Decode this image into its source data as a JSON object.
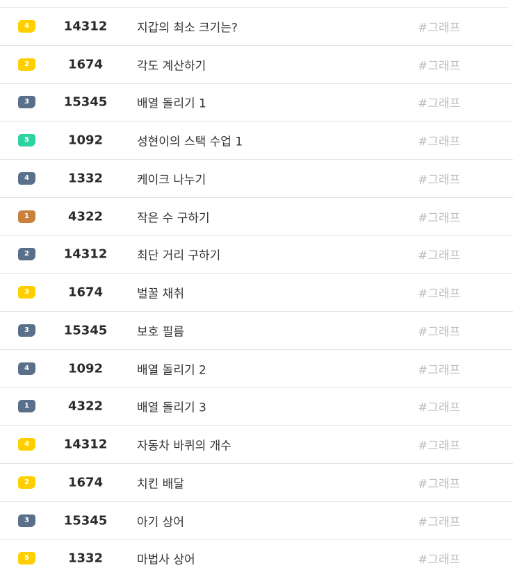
{
  "colors": {
    "gold": "#ffcf00",
    "silver": "#5a6f8a",
    "ruby": "#2ed3a2",
    "bronze": "#c9823e",
    "divider": "#e3e3e3",
    "tag_text": "#bdbdbd"
  },
  "problems": [
    {
      "level": "4",
      "tier": "gold",
      "id": "14312",
      "title": "지갑의 최소 크기는?",
      "tag": "#그래프"
    },
    {
      "level": "2",
      "tier": "gold",
      "id": "1674",
      "title": "각도 계산하기",
      "tag": "#그래프"
    },
    {
      "level": "3",
      "tier": "silver",
      "id": "15345",
      "title": "배열 돌리기 1",
      "tag": "#그래프"
    },
    {
      "level": "5",
      "tier": "ruby",
      "id": "1092",
      "title": "성현이의 스택 수업 1",
      "tag": "#그래프"
    },
    {
      "level": "4",
      "tier": "silver",
      "id": "1332",
      "title": "케이크 나누기",
      "tag": "#그래프"
    },
    {
      "level": "1",
      "tier": "bronze",
      "id": "4322",
      "title": "작은 수 구하기",
      "tag": "#그래프"
    },
    {
      "level": "2",
      "tier": "silver",
      "id": "14312",
      "title": "최단 거리 구하기",
      "tag": "#그래프"
    },
    {
      "level": "3",
      "tier": "gold",
      "id": "1674",
      "title": "벌꿀 채취",
      "tag": "#그래프"
    },
    {
      "level": "3",
      "tier": "silver",
      "id": "15345",
      "title": "보호 필름",
      "tag": "#그래프"
    },
    {
      "level": "4",
      "tier": "silver",
      "id": "1092",
      "title": "배열 돌리기 2",
      "tag": "#그래프"
    },
    {
      "level": "1",
      "tier": "silver",
      "id": "4322",
      "title": "배열 돌리기 3",
      "tag": "#그래프"
    },
    {
      "level": "4",
      "tier": "gold",
      "id": "14312",
      "title": "자동차 바퀴의 개수",
      "tag": "#그래프"
    },
    {
      "level": "2",
      "tier": "gold",
      "id": "1674",
      "title": "치킨 배달",
      "tag": "#그래프"
    },
    {
      "level": "3",
      "tier": "silver",
      "id": "15345",
      "title": "아기 상어",
      "tag": "#그래프"
    },
    {
      "level": "5",
      "tier": "gold",
      "id": "1332",
      "title": "마법사 상어",
      "tag": "#그래프"
    }
  ]
}
